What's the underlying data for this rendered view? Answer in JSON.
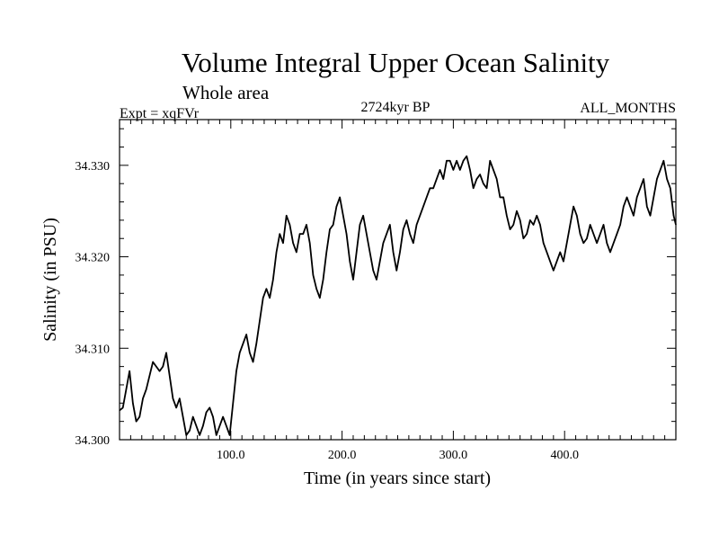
{
  "chart_data": {
    "type": "line",
    "title": "Volume Integral Upper Ocean Salinity",
    "subtitle": "Whole area",
    "experiment_label": "Expt = xqFVr",
    "period_label": "2724kyr BP",
    "months_label": "ALL_MONTHS",
    "xlabel": "Time (in years since start)",
    "ylabel": "Salinity (in PSU)",
    "xlim": [
      0,
      500
    ],
    "ylim": [
      34.3,
      34.335
    ],
    "x_ticks": [
      100,
      200,
      300,
      400
    ],
    "x_tick_labels": [
      "100.0",
      "200.0",
      "300.0",
      "400.0"
    ],
    "y_ticks": [
      34.3,
      34.31,
      34.32,
      34.33
    ],
    "y_tick_labels": [
      "34.300",
      "34.310",
      "34.320",
      "34.330"
    ],
    "series": [
      {
        "name": "salinity",
        "x": [
          0,
          3,
          6,
          9,
          12,
          15,
          18,
          21,
          24,
          27,
          30,
          33,
          36,
          39,
          42,
          45,
          48,
          51,
          54,
          57,
          60,
          63,
          66,
          69,
          72,
          75,
          78,
          81,
          84,
          87,
          90,
          93,
          96,
          99,
          102,
          105,
          108,
          111,
          114,
          117,
          120,
          123,
          126,
          129,
          132,
          135,
          138,
          141,
          144,
          147,
          150,
          153,
          156,
          159,
          162,
          165,
          168,
          171,
          174,
          177,
          180,
          183,
          186,
          189,
          192,
          195,
          198,
          201,
          204,
          207,
          210,
          213,
          216,
          219,
          222,
          225,
          228,
          231,
          234,
          237,
          240,
          243,
          246,
          249,
          252,
          255,
          258,
          261,
          264,
          267,
          270,
          273,
          276,
          279,
          282,
          285,
          288,
          291,
          294,
          297,
          300,
          303,
          306,
          309,
          312,
          315,
          318,
          321,
          324,
          327,
          330,
          333,
          336,
          339,
          342,
          345,
          348,
          351,
          354,
          357,
          360,
          363,
          366,
          369,
          372,
          375,
          378,
          381,
          384,
          387,
          390,
          393,
          396,
          399,
          402,
          405,
          408,
          411,
          414,
          417,
          420,
          423,
          426,
          429,
          432,
          435,
          438,
          441,
          444,
          447,
          450,
          453,
          456,
          459,
          462,
          465,
          468,
          471,
          474,
          477,
          480,
          483,
          486,
          489,
          492,
          495,
          498,
          500
        ],
        "values": [
          34.3032,
          34.3035,
          34.3055,
          34.3075,
          34.304,
          34.302,
          34.3025,
          34.3045,
          34.3055,
          34.307,
          34.3085,
          34.308,
          34.3075,
          34.308,
          34.3095,
          34.307,
          34.3045,
          34.3035,
          34.3045,
          34.3025,
          34.3005,
          34.301,
          34.3025,
          34.3015,
          34.3005,
          34.3015,
          34.303,
          34.3035,
          34.3025,
          34.3005,
          34.3015,
          34.3025,
          34.3015,
          34.3005,
          34.304,
          34.3075,
          34.3095,
          34.3105,
          34.3115,
          34.3095,
          34.3085,
          34.3105,
          34.313,
          34.3155,
          34.3165,
          34.3155,
          34.3175,
          34.3205,
          34.3225,
          34.3215,
          34.3245,
          34.3235,
          34.3215,
          34.3205,
          34.3225,
          34.3225,
          34.3235,
          34.3215,
          34.318,
          34.3165,
          34.3155,
          34.3175,
          34.3205,
          34.323,
          34.3235,
          34.3255,
          34.3265,
          34.3245,
          34.3225,
          34.3195,
          34.3175,
          34.3205,
          34.3235,
          34.3245,
          34.3225,
          34.3205,
          34.3185,
          34.3175,
          34.3195,
          34.3215,
          34.3225,
          34.3235,
          34.3205,
          34.3185,
          34.3205,
          34.323,
          34.324,
          34.3225,
          34.3215,
          34.3235,
          34.3245,
          34.3255,
          34.3265,
          34.3275,
          34.3275,
          34.3285,
          34.3295,
          34.3285,
          34.3305,
          34.3305,
          34.3295,
          34.3305,
          34.3295,
          34.3305,
          34.331,
          34.3295,
          34.3275,
          34.3285,
          34.329,
          34.328,
          34.3275,
          34.3305,
          34.3295,
          34.3285,
          34.3265,
          34.3265,
          34.3245,
          34.323,
          34.3235,
          34.325,
          34.324,
          34.322,
          34.3225,
          34.324,
          34.3235,
          34.3245,
          34.3235,
          34.3215,
          34.3205,
          34.3195,
          34.3185,
          34.3195,
          34.3205,
          34.3195,
          34.3215,
          34.3235,
          34.3255,
          34.3245,
          34.3225,
          34.3215,
          34.322,
          34.3235,
          34.3225,
          34.3215,
          34.3225,
          34.3235,
          34.3215,
          34.3205,
          34.3215,
          34.3225,
          34.3235,
          34.3255,
          34.3265,
          34.3255,
          34.3245,
          34.3265,
          34.3275,
          34.3285,
          34.3255,
          34.3245,
          34.3265,
          34.3285,
          34.3295,
          34.3305,
          34.3285,
          34.3275,
          34.3245,
          34.3235
        ]
      }
    ]
  }
}
